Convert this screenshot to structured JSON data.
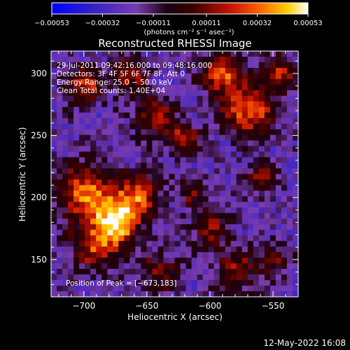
{
  "chart_data": {
    "type": "heatmap",
    "title": "Reconstructed RHESSI Image",
    "xlabel": "Heliocentric X (arcsec)",
    "ylabel": "Heliocentric Y (arcsec)",
    "xlim": [
      -726,
      -530
    ],
    "ylim": [
      120,
      318
    ],
    "x_ticks": [
      -700,
      -650,
      -600,
      -550
    ],
    "x_tick_labels": [
      "−700",
      "−650",
      "−600",
      "−550"
    ],
    "y_ticks": [
      150,
      200,
      250,
      300
    ],
    "y_tick_labels": [
      "150",
      "200",
      "250",
      "300"
    ],
    "colorbar": {
      "range": [
        -0.00053,
        0.00053
      ],
      "ticks": [
        -0.00053,
        -0.00032,
        -0.00011,
        0.00011,
        0.00032,
        0.00053
      ],
      "tick_labels": [
        "−0.00053",
        "−0.00032",
        "−0.00011",
        "0.00011",
        "0.00032",
        "0.00053"
      ],
      "units_label": "(photons cm⁻² s⁻¹ asec⁻²)"
    },
    "annotations": [
      "29‑Jul‑2011 09:42:16.000 to 09:48:16.000",
      "Detectors: 3F 4F 5F 6F 7F 8F, Att 0",
      "Energy Range: 25.0 − 50.0 keV",
      "Clean    Total counts: 1.40E+04"
    ],
    "peak_label": "Position of Peak = [−673,183]",
    "peak": [
      -673,
      183
    ],
    "blobs": [
      {
        "x": -673,
        "y": 183,
        "sigma": 14,
        "amp": 1.0
      },
      {
        "x": -700,
        "y": 205,
        "sigma": 16,
        "amp": 0.75
      },
      {
        "x": -690,
        "y": 160,
        "sigma": 14,
        "amp": 0.6
      },
      {
        "x": -655,
        "y": 205,
        "sigma": 12,
        "amp": 0.6
      },
      {
        "x": -700,
        "y": 290,
        "sigma": 11,
        "amp": 0.6
      },
      {
        "x": -665,
        "y": 300,
        "sigma": 10,
        "amp": 0.55
      },
      {
        "x": -645,
        "y": 268,
        "sigma": 12,
        "amp": 0.5
      },
      {
        "x": -622,
        "y": 248,
        "sigma": 10,
        "amp": 0.55
      },
      {
        "x": -570,
        "y": 270,
        "sigma": 14,
        "amp": 0.8
      },
      {
        "x": -590,
        "y": 300,
        "sigma": 12,
        "amp": 0.75
      },
      {
        "x": -545,
        "y": 300,
        "sigma": 10,
        "amp": 0.6
      },
      {
        "x": -560,
        "y": 215,
        "sigma": 10,
        "amp": 0.45
      },
      {
        "x": -600,
        "y": 175,
        "sigma": 12,
        "amp": 0.45
      },
      {
        "x": -580,
        "y": 140,
        "sigma": 12,
        "amp": 0.55
      },
      {
        "x": -550,
        "y": 150,
        "sigma": 9,
        "amp": 0.45
      },
      {
        "x": -640,
        "y": 140,
        "sigma": 12,
        "amp": 0.45
      },
      {
        "x": -615,
        "y": 205,
        "sigma": 8,
        "amp": 0.4
      }
    ]
  },
  "footer": {
    "date": "12‑May‑2022 16:08"
  }
}
